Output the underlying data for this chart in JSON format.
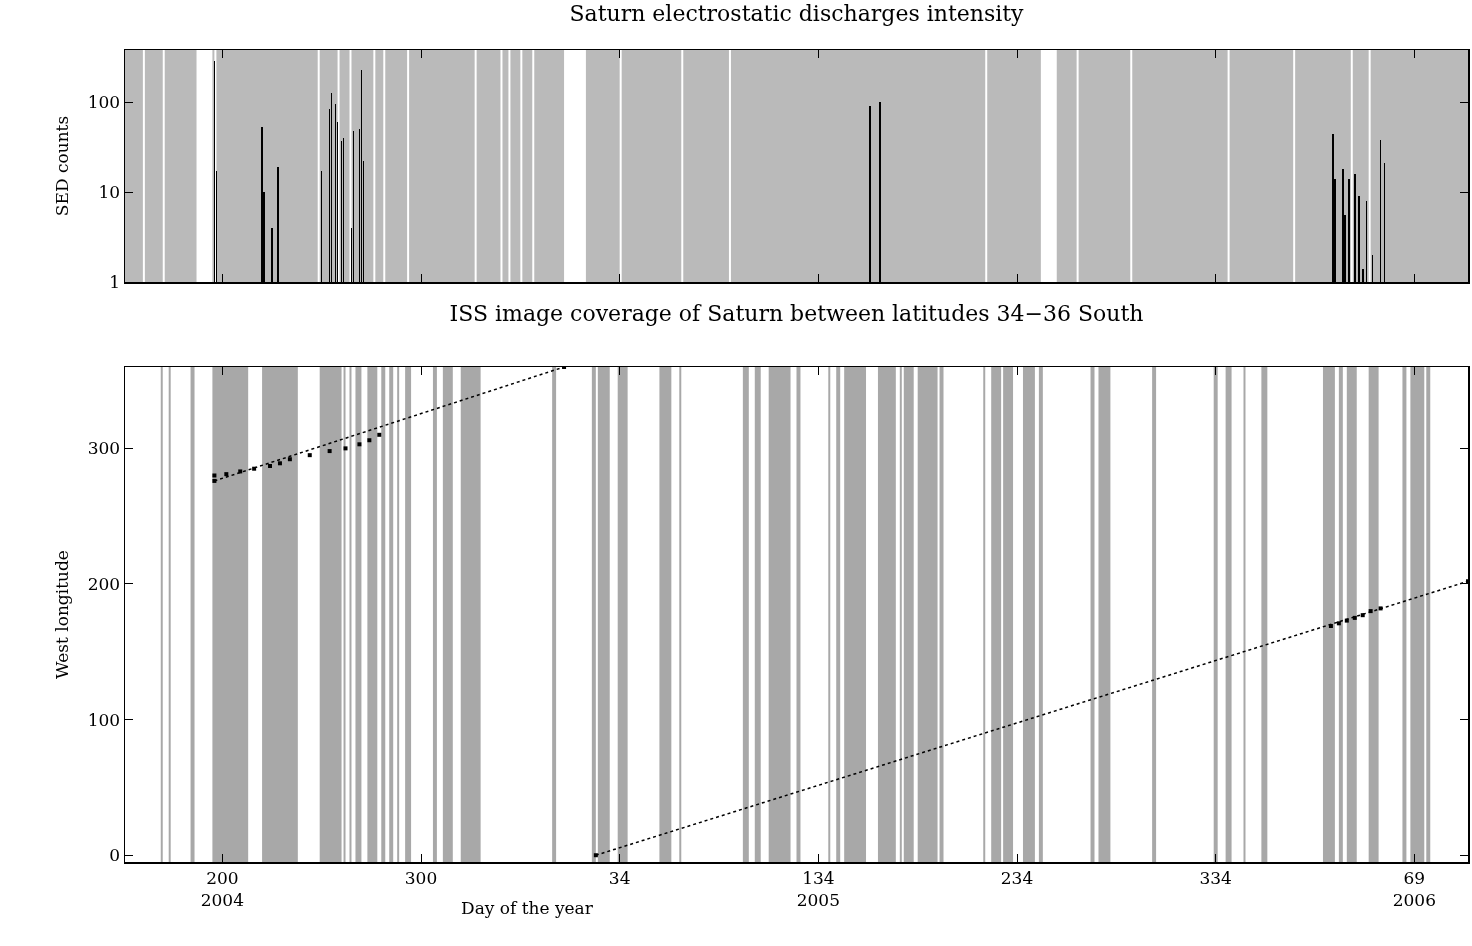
{
  "chart_data": [
    {
      "type": "bar",
      "title": "Saturn electrostatic discharges intensity",
      "ylabel": "SED counts",
      "color": "#000000",
      "log": true,
      "tick_labels": "y",
      "x": [
        "2004-07-14",
        "2004-07-15",
        "2004-08-07",
        "2004-08-08",
        "2004-08-12",
        "2004-08-15",
        "2004-09-06",
        "2004-09-10",
        "2004-09-11",
        "2004-09-13",
        "2004-09-14",
        "2004-09-16",
        "2004-09-17",
        "2004-09-21",
        "2004-09-22",
        "2004-09-25",
        "2004-09-26",
        "2004-09-27",
        "2005-06-09",
        "2005-06-14",
        "2006-01-28",
        "2006-01-29",
        "2006-02-02",
        "2006-02-03",
        "2006-02-05",
        "2006-02-08",
        "2006-02-10",
        "2006-02-12",
        "2006-02-14",
        "2006-02-17",
        "2006-02-21",
        "2006-02-23"
      ],
      "values": [
        290,
        17,
        53,
        10,
        4,
        19,
        17,
        84,
        125,
        95,
        60,
        37,
        40,
        4,
        48,
        50,
        230,
        22,
        90,
        100,
        44,
        14,
        18,
        5.5,
        14,
        16,
        9,
        1.4,
        8,
        2,
        38,
        21
      ],
      "xlim": [
        "2004-05-30",
        "2006-04-06"
      ],
      "xticks": [
        {
          "value": "2004-07-18",
          "label": null
        },
        {
          "value": "2004-10-26",
          "label": null
        },
        {
          "value": "2005-02-03",
          "label": null
        },
        {
          "value": "2005-05-14",
          "label": null
        },
        {
          "value": "2005-08-22",
          "label": null
        },
        {
          "value": "2005-11-30",
          "label": null
        },
        {
          "value": "2006-03-10",
          "label": null
        }
      ],
      "ylim": [
        1,
        380
      ],
      "yticks": [
        1,
        10,
        100
      ],
      "bands": [
        {
          "axis": "x",
          "from": "2004-05-30",
          "to": "2004-06-08",
          "color": "#bababa"
        },
        {
          "axis": "x",
          "from": "2004-06-09",
          "to": "2004-06-18",
          "color": "#bababa"
        },
        {
          "axis": "x",
          "from": "2004-06-19",
          "to": "2004-07-05",
          "color": "#bababa"
        },
        {
          "axis": "x",
          "from": "2004-07-13",
          "to": "2004-07-14",
          "color": "#bababa"
        },
        {
          "axis": "x",
          "from": "2004-07-15",
          "to": "2004-09-04",
          "color": "#bababa"
        },
        {
          "axis": "x",
          "from": "2004-09-05",
          "to": "2004-09-14",
          "color": "#bababa"
        },
        {
          "axis": "x",
          "from": "2004-09-15",
          "to": "2004-09-20",
          "color": "#bababa"
        },
        {
          "axis": "x",
          "from": "2004-09-21",
          "to": "2004-10-02",
          "color": "#bababa"
        },
        {
          "axis": "x",
          "from": "2004-10-03",
          "to": "2004-10-07",
          "color": "#bababa"
        },
        {
          "axis": "x",
          "from": "2004-10-08",
          "to": "2004-10-19",
          "color": "#bababa"
        },
        {
          "axis": "x",
          "from": "2004-10-20",
          "to": "2004-11-22",
          "color": "#bababa"
        },
        {
          "axis": "x",
          "from": "2004-11-23",
          "to": "2004-12-05",
          "color": "#bababa"
        },
        {
          "axis": "x",
          "from": "2004-12-06",
          "to": "2004-12-09",
          "color": "#bababa"
        },
        {
          "axis": "x",
          "from": "2004-12-10",
          "to": "2004-12-15",
          "color": "#bababa"
        },
        {
          "axis": "x",
          "from": "2004-12-16",
          "to": "2004-12-21",
          "color": "#bababa"
        },
        {
          "axis": "x",
          "from": "2004-12-22",
          "to": "2005-01-06",
          "color": "#bababa"
        },
        {
          "axis": "x",
          "from": "2005-01-17",
          "to": "2005-02-03",
          "color": "#bababa"
        },
        {
          "axis": "x",
          "from": "2005-02-04",
          "to": "2005-03-06",
          "color": "#bababa"
        },
        {
          "axis": "x",
          "from": "2005-03-07",
          "to": "2005-03-30",
          "color": "#bababa"
        },
        {
          "axis": "x",
          "from": "2005-03-31",
          "to": "2005-08-06",
          "color": "#bababa"
        },
        {
          "axis": "x",
          "from": "2005-08-07",
          "to": "2005-09-03",
          "color": "#bababa"
        },
        {
          "axis": "x",
          "from": "2005-09-11",
          "to": "2005-09-21",
          "color": "#bababa"
        },
        {
          "axis": "x",
          "from": "2005-09-22",
          "to": "2005-10-18",
          "color": "#bababa"
        },
        {
          "axis": "x",
          "from": "2005-10-19",
          "to": "2005-12-06",
          "color": "#bababa"
        },
        {
          "axis": "x",
          "from": "2005-12-07",
          "to": "2006-01-08",
          "color": "#bababa"
        },
        {
          "axis": "x",
          "from": "2006-01-09",
          "to": "2006-02-06",
          "color": "#bababa"
        },
        {
          "axis": "x",
          "from": "2006-02-07",
          "to": "2006-02-15",
          "color": "#bababa"
        },
        {
          "axis": "x",
          "from": "2006-02-16",
          "to": "2006-04-06",
          "color": "#bababa"
        }
      ]
    },
    {
      "type": "scatter",
      "title": "ISS image coverage of Saturn between latitudes 34−36 South",
      "xlabel": "Day of the year",
      "ylabel": "West longitude",
      "marker": "square",
      "series": [
        {
          "color": "#000000",
          "x": [
            "2004-07-14",
            "2004-07-20",
            "2004-07-27",
            "2004-08-03",
            "2004-08-11",
            "2004-08-16",
            "2004-08-21",
            "2004-08-31",
            "2004-09-10",
            "2004-09-18",
            "2004-09-25",
            "2004-09-30",
            "2004-10-05"
          ],
          "values": [
            280,
            281,
            283,
            285,
            287,
            289,
            292,
            295,
            298,
            300,
            303,
            306,
            310
          ]
        },
        {
          "color": "#000000",
          "x": [
            "2006-01-27",
            "2006-01-31",
            "2006-02-04",
            "2006-02-08",
            "2006-02-12",
            "2006-02-16",
            "2006-02-21"
          ],
          "values": [
            169,
            171,
            173,
            175,
            177,
            180,
            182
          ]
        },
        {
          "type": "line",
          "color": "#000000",
          "line_style": "dotted",
          "x": [
            "2004-07-14",
            "2005-01-06"
          ],
          "values": [
            276,
            360
          ]
        },
        {
          "type": "line",
          "color": "#000000",
          "line_style": "dotted",
          "x": [
            "2005-01-22",
            "2006-04-06"
          ],
          "values": [
            0,
            202
          ]
        }
      ],
      "xlim": [
        "2004-05-30",
        "2006-04-06"
      ],
      "xticks": [
        {
          "value": "2004-07-18",
          "label": "200\n2004"
        },
        {
          "value": "2004-10-26",
          "label": "300"
        },
        {
          "value": "2005-02-03",
          "label": "34"
        },
        {
          "value": "2005-05-14",
          "label": "134\n2005"
        },
        {
          "value": "2005-08-22",
          "label": "234"
        },
        {
          "value": "2005-11-30",
          "label": "334"
        },
        {
          "value": "2006-03-10",
          "label": "69\n2006"
        }
      ],
      "ylim": [
        -5,
        360
      ],
      "yticks": [
        0,
        100,
        200,
        300
      ],
      "bands": [
        {
          "axis": "x",
          "from": "2004-06-17",
          "to": "2004-06-18",
          "color": "#a8a8a8"
        },
        {
          "axis": "x",
          "from": "2004-06-21",
          "to": "2004-06-22",
          "color": "#a8a8a8"
        },
        {
          "axis": "x",
          "from": "2004-07-02",
          "to": "2004-07-04",
          "color": "#a8a8a8"
        },
        {
          "axis": "x",
          "from": "2004-07-13",
          "to": "2004-07-31",
          "color": "#a8a8a8"
        },
        {
          "axis": "x",
          "from": "2004-08-07",
          "to": "2004-08-25",
          "color": "#a8a8a8"
        },
        {
          "axis": "x",
          "from": "2004-09-05",
          "to": "2004-09-16",
          "color": "#a8a8a8"
        },
        {
          "axis": "x",
          "from": "2004-09-17",
          "to": "2004-09-18",
          "color": "#a8a8a8"
        },
        {
          "axis": "x",
          "from": "2004-09-20",
          "to": "2004-09-21",
          "color": "#a8a8a8"
        },
        {
          "axis": "x",
          "from": "2004-09-23",
          "to": "2004-09-26",
          "color": "#a8a8a8"
        },
        {
          "axis": "x",
          "from": "2004-09-29",
          "to": "2004-10-04",
          "color": "#a8a8a8"
        },
        {
          "axis": "x",
          "from": "2004-10-06",
          "to": "2004-10-08",
          "color": "#a8a8a8"
        },
        {
          "axis": "x",
          "from": "2004-10-10",
          "to": "2004-10-12",
          "color": "#a8a8a8"
        },
        {
          "axis": "x",
          "from": "2004-10-14",
          "to": "2004-10-15",
          "color": "#a8a8a8"
        },
        {
          "axis": "x",
          "from": "2004-10-18",
          "to": "2004-10-21",
          "color": "#a8a8a8"
        },
        {
          "axis": "x",
          "from": "2004-11-01",
          "to": "2004-11-03",
          "color": "#a8a8a8"
        },
        {
          "axis": "x",
          "from": "2004-11-06",
          "to": "2004-11-11",
          "color": "#a8a8a8"
        },
        {
          "axis": "x",
          "from": "2004-11-15",
          "to": "2004-11-25",
          "color": "#a8a8a8"
        },
        {
          "axis": "x",
          "from": "2004-12-31",
          "to": "2005-01-02",
          "color": "#a8a8a8"
        },
        {
          "axis": "x",
          "from": "2005-01-20",
          "to": "2005-01-22",
          "color": "#a8a8a8"
        },
        {
          "axis": "x",
          "from": "2005-01-23",
          "to": "2005-01-29",
          "color": "#a8a8a8"
        },
        {
          "axis": "x",
          "from": "2005-02-02",
          "to": "2005-02-07",
          "color": "#a8a8a8"
        },
        {
          "axis": "x",
          "from": "2005-02-23",
          "to": "2005-03-01",
          "color": "#a8a8a8"
        },
        {
          "axis": "x",
          "from": "2005-03-05",
          "to": "2005-03-06",
          "color": "#a8a8a8"
        },
        {
          "axis": "x",
          "from": "2005-04-06",
          "to": "2005-04-09",
          "color": "#a8a8a8"
        },
        {
          "axis": "x",
          "from": "2005-04-12",
          "to": "2005-04-15",
          "color": "#a8a8a8"
        },
        {
          "axis": "x",
          "from": "2005-04-19",
          "to": "2005-04-30",
          "color": "#a8a8a8"
        },
        {
          "axis": "x",
          "from": "2005-05-03",
          "to": "2005-05-05",
          "color": "#a8a8a8"
        },
        {
          "axis": "x",
          "from": "2005-05-19",
          "to": "2005-05-20",
          "color": "#a8a8a8"
        },
        {
          "axis": "x",
          "from": "2005-05-23",
          "to": "2005-05-25",
          "color": "#a8a8a8"
        },
        {
          "axis": "x",
          "from": "2005-05-27",
          "to": "2005-06-07",
          "color": "#a8a8a8"
        },
        {
          "axis": "x",
          "from": "2005-06-13",
          "to": "2005-06-22",
          "color": "#a8a8a8"
        },
        {
          "axis": "x",
          "from": "2005-06-24",
          "to": "2005-06-25",
          "color": "#a8a8a8"
        },
        {
          "axis": "x",
          "from": "2005-06-26",
          "to": "2005-07-01",
          "color": "#a8a8a8"
        },
        {
          "axis": "x",
          "from": "2005-07-03",
          "to": "2005-07-13",
          "color": "#a8a8a8"
        },
        {
          "axis": "x",
          "from": "2005-07-14",
          "to": "2005-07-16",
          "color": "#a8a8a8"
        },
        {
          "axis": "x",
          "from": "2005-08-05",
          "to": "2005-08-06",
          "color": "#a8a8a8"
        },
        {
          "axis": "x",
          "from": "2005-08-09",
          "to": "2005-08-14",
          "color": "#a8a8a8"
        },
        {
          "axis": "x",
          "from": "2005-08-15",
          "to": "2005-08-20",
          "color": "#a8a8a8"
        },
        {
          "axis": "x",
          "from": "2005-08-25",
          "to": "2005-08-31",
          "color": "#a8a8a8"
        },
        {
          "axis": "x",
          "from": "2005-09-02",
          "to": "2005-09-04",
          "color": "#a8a8a8"
        },
        {
          "axis": "x",
          "from": "2005-09-28",
          "to": "2005-09-30",
          "color": "#a8a8a8"
        },
        {
          "axis": "x",
          "from": "2005-10-02",
          "to": "2005-10-08",
          "color": "#a8a8a8"
        },
        {
          "axis": "x",
          "from": "2005-10-29",
          "to": "2005-10-31",
          "color": "#a8a8a8"
        },
        {
          "axis": "x",
          "from": "2005-11-29",
          "to": "2005-12-01",
          "color": "#a8a8a8"
        },
        {
          "axis": "x",
          "from": "2005-12-05",
          "to": "2005-12-08",
          "color": "#a8a8a8"
        },
        {
          "axis": "x",
          "from": "2005-12-14",
          "to": "2005-12-15",
          "color": "#a8a8a8"
        },
        {
          "axis": "x",
          "from": "2005-12-23",
          "to": "2005-12-26",
          "color": "#a8a8a8"
        },
        {
          "axis": "x",
          "from": "2006-01-23",
          "to": "2006-01-29",
          "color": "#a8a8a8"
        },
        {
          "axis": "x",
          "from": "2006-01-31",
          "to": "2006-02-02",
          "color": "#a8a8a8"
        },
        {
          "axis": "x",
          "from": "2006-02-04",
          "to": "2006-02-09",
          "color": "#a8a8a8"
        },
        {
          "axis": "x",
          "from": "2006-02-15",
          "to": "2006-02-20",
          "color": "#a8a8a8"
        },
        {
          "axis": "x",
          "from": "2006-03-04",
          "to": "2006-03-06",
          "color": "#a8a8a8"
        },
        {
          "axis": "x",
          "from": "2006-03-08",
          "to": "2006-03-15",
          "color": "#a8a8a8"
        },
        {
          "axis": "x",
          "from": "2006-03-16",
          "to": "2006-03-18",
          "color": "#a8a8a8"
        }
      ]
    }
  ]
}
